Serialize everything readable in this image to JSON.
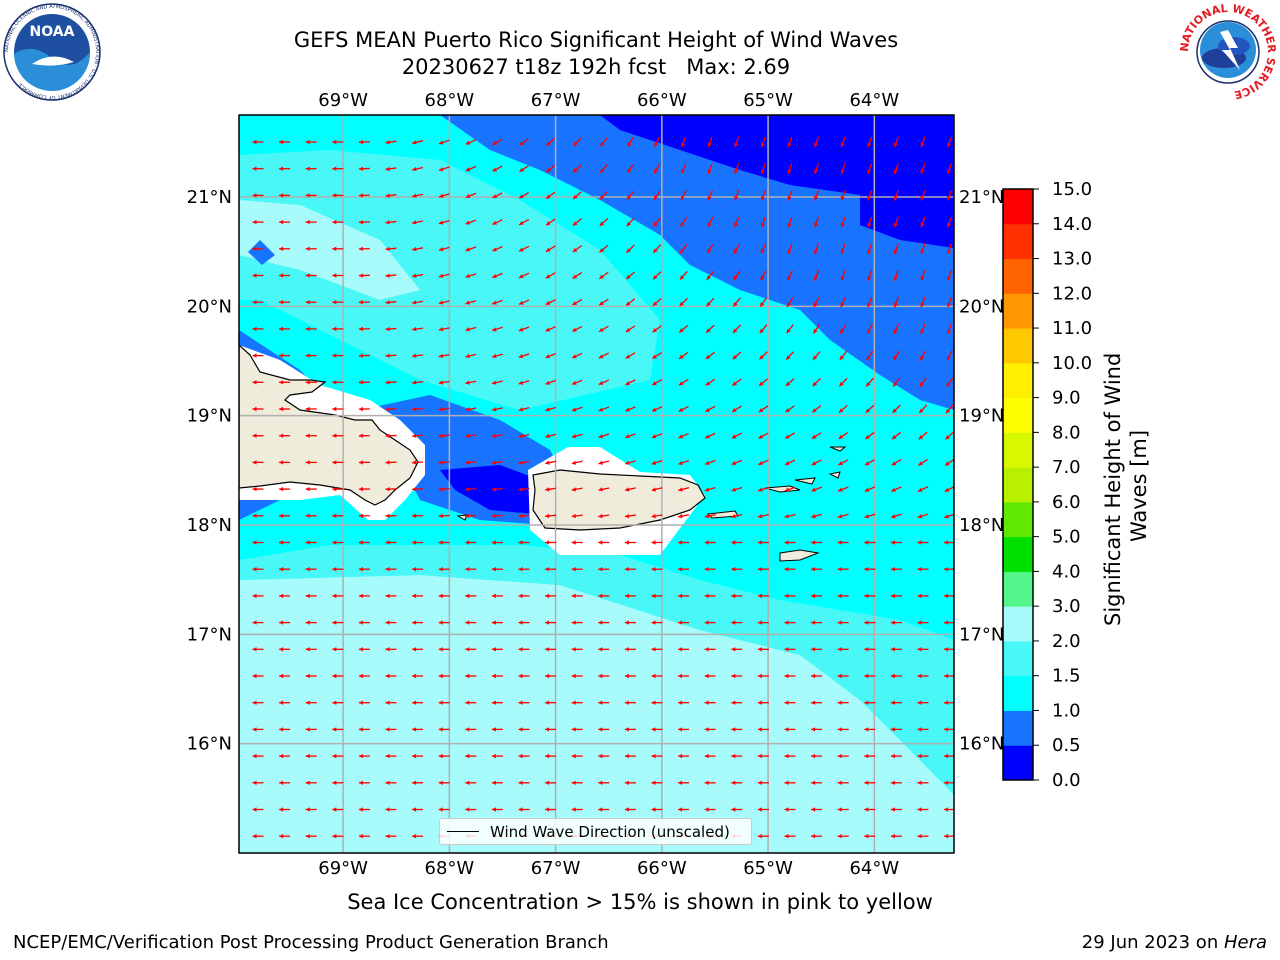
{
  "title": {
    "line1": "GEFS MEAN Puerto Rico Significant Height of Wind Waves",
    "line2": "20230627 t18z 192h fcst   Max: 2.69"
  },
  "map": {
    "lon_range": [
      -69.98,
      -63.25
    ],
    "lat_range": [
      15.0,
      21.75
    ],
    "lon_ticks": [
      -69,
      -68,
      -67,
      -66,
      -65,
      -64
    ],
    "lon_tick_labels": [
      "69°W",
      "68°W",
      "67°W",
      "66°W",
      "65°W",
      "64°W"
    ],
    "lat_ticks": [
      16,
      17,
      18,
      19,
      20,
      21
    ],
    "lat_tick_labels": [
      "16°N",
      "17°N",
      "18°N",
      "19°N",
      "20°N",
      "21°N"
    ],
    "arrow_color": "#ff0000",
    "land_color": "#efecdc",
    "grid": true
  },
  "colorbar": {
    "label": "Significant Height of Wind Waves [m]",
    "label_line1": "Significant Height of Wind",
    "label_line2": "Waves [m]",
    "levels": [
      0.0,
      0.5,
      1.0,
      1.5,
      2.0,
      3.0,
      4.0,
      5.0,
      6.0,
      7.0,
      8.0,
      9.0,
      10.0,
      11.0,
      12.0,
      13.0,
      14.0,
      15.0
    ],
    "tick_labels": [
      "0.0",
      "0.5",
      "1.0",
      "1.5",
      "2.0",
      "3.0",
      "4.0",
      "5.0",
      "6.0",
      "7.0",
      "8.0",
      "9.0",
      "10.0",
      "11.0",
      "12.0",
      "13.0",
      "14.0",
      "15.0"
    ],
    "colors": [
      "#0000ff",
      "#1874ff",
      "#00ffff",
      "#4af7f7",
      "#a8fbfb",
      "#52f58a",
      "#00e000",
      "#60e800",
      "#b8f000",
      "#d8f800",
      "#ffff00",
      "#fff000",
      "#ffc800",
      "#ff9800",
      "#ff6400",
      "#ff3000",
      "#ff0000"
    ]
  },
  "legend": {
    "label": "Wind Wave Direction (unscaled)"
  },
  "caption": "Sea Ice Concentration > 15% is shown in pink to yellow",
  "footer": {
    "left": "NCEP/EMC/Verification Post Processing Product Generation Branch",
    "right_prefix": "29 Jun 2023 on ",
    "right_host": "Hera"
  },
  "logos": {
    "noaa_text": "NOAA",
    "noaa_ring": "NATIONAL OCEANIC AND ATMOSPHERIC ADMINISTRATION · U.S. DEPARTMENT OF COMMERCE",
    "nws_ring": "NATIONAL WEATHER SERVICE"
  }
}
